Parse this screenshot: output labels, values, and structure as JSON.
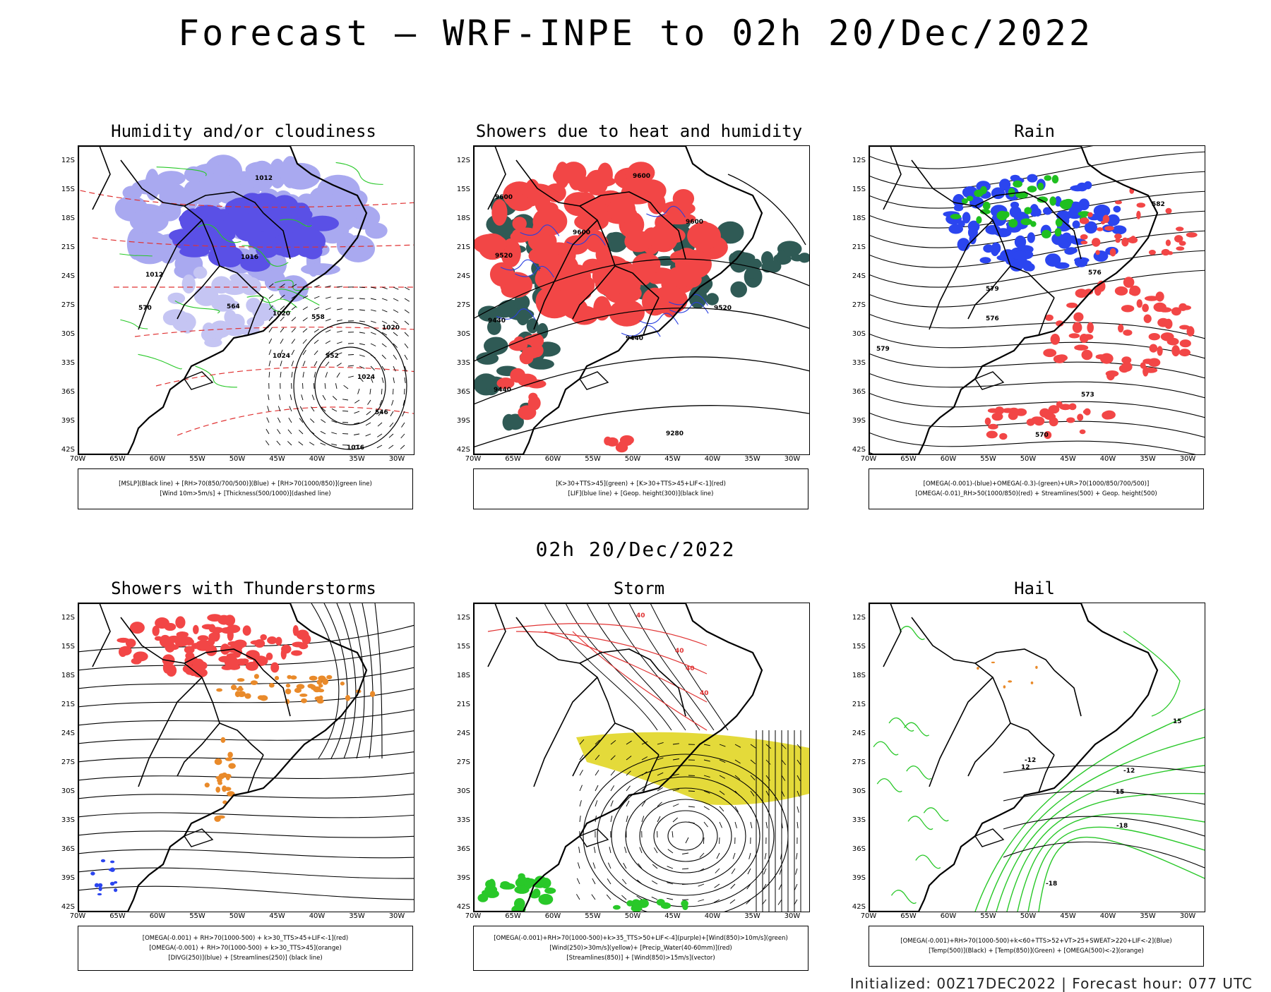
{
  "title": "Forecast — WRF-INPE to 02h 20/Dec/2022",
  "row_title": "02h 20/Dec/2022",
  "footer": "Initialized: 00Z17DEC2022 | Forecast hour: 077 UTC",
  "axes": {
    "lat_labels": [
      "12S",
      "15S",
      "18S",
      "21S",
      "24S",
      "27S",
      "30S",
      "33S",
      "36S",
      "39S",
      "42S"
    ],
    "lon_labels": [
      "70W",
      "65W",
      "60W",
      "55W",
      "50W",
      "45W",
      "40W",
      "35W",
      "30W"
    ]
  },
  "panels": [
    {
      "id": "humidity",
      "title": "Humidity and/or cloudiness",
      "legend": [
        "[MSLP](Black line) + [RH>70(850/700/500)](Blue) + [RH>70(1000/850)](green line)",
        "[Wind 10m>5m/s] + [Thickness(500/1000)](dashed line)"
      ],
      "contour_labels": [
        "1012",
        "1012",
        "1016",
        "1020",
        "1024",
        "1024",
        "1020",
        "570",
        "564",
        "558",
        "552",
        "546",
        "1016"
      ]
    },
    {
      "id": "showers",
      "title": "Showers due to heat and humidity",
      "legend": [
        "[K>30+TTS>45](green) + [K>30+TTS>45+LIF<-1](red)",
        "[LIF](blue line) + [Geop. height(300)](black line)"
      ],
      "contour_labels": [
        "9600",
        "9600",
        "9600",
        "9600",
        "9520",
        "9520",
        "9440",
        "9440",
        "9440",
        "9280"
      ]
    },
    {
      "id": "rain",
      "title": "Rain",
      "legend": [
        "[OMEGA(-0.001)-(blue)+OMEGA(-0.3)-(green)+UR>70(1000/850/700/500)]",
        "[OMEGA(-0.01)_RH>50(1000/850)(red) + Streamlines(500) + Geop. height(500)"
      ],
      "contour_labels": [
        "579",
        "579",
        "576",
        "576",
        "573",
        "570",
        "582"
      ]
    },
    {
      "id": "thunder",
      "title": "Showers with Thunderstorms",
      "legend": [
        "[OMEGA(-0.001) + RH>70(1000-500) + k>30_TTS>45+LIF<-1](red)",
        "[OMEGA(-0.001) + RH>70(1000-500) + k>30_TTS>45](orange)",
        "[DIVG(250)](blue) + [Streamlines(250)] (black line)"
      ],
      "contour_labels": []
    },
    {
      "id": "storm",
      "title": "Storm",
      "legend": [
        "[OMEGA(-0.001)+RH>70(1000-500)+k>35_TTS>50+LIF<-4](purple)+[Wind(850)>10m/s](green)",
        "[Wind(250)>30m/s](yellow)+ [Precip_Water(40-60mm)](red)",
        "[Streamlines(850)] + [Wind(850)>15m/s](vector)"
      ],
      "contour_labels": [
        "40",
        "40",
        "40",
        "40"
      ]
    },
    {
      "id": "hail",
      "title": "Hail",
      "legend": [
        "[OMEGA(-0.001)+RH>70(1000-500)+k<60+TTS>52+VT>25+SWEAT>220+LIF<-2](Blue)",
        "[Temp(500)](Black) + [Temp(850)](Green) + [OMEGA(500)<-2](orange)"
      ],
      "contour_labels": [
        "-12",
        "-12",
        "-15",
        "-18",
        "-18",
        "12",
        "15"
      ]
    }
  ]
}
